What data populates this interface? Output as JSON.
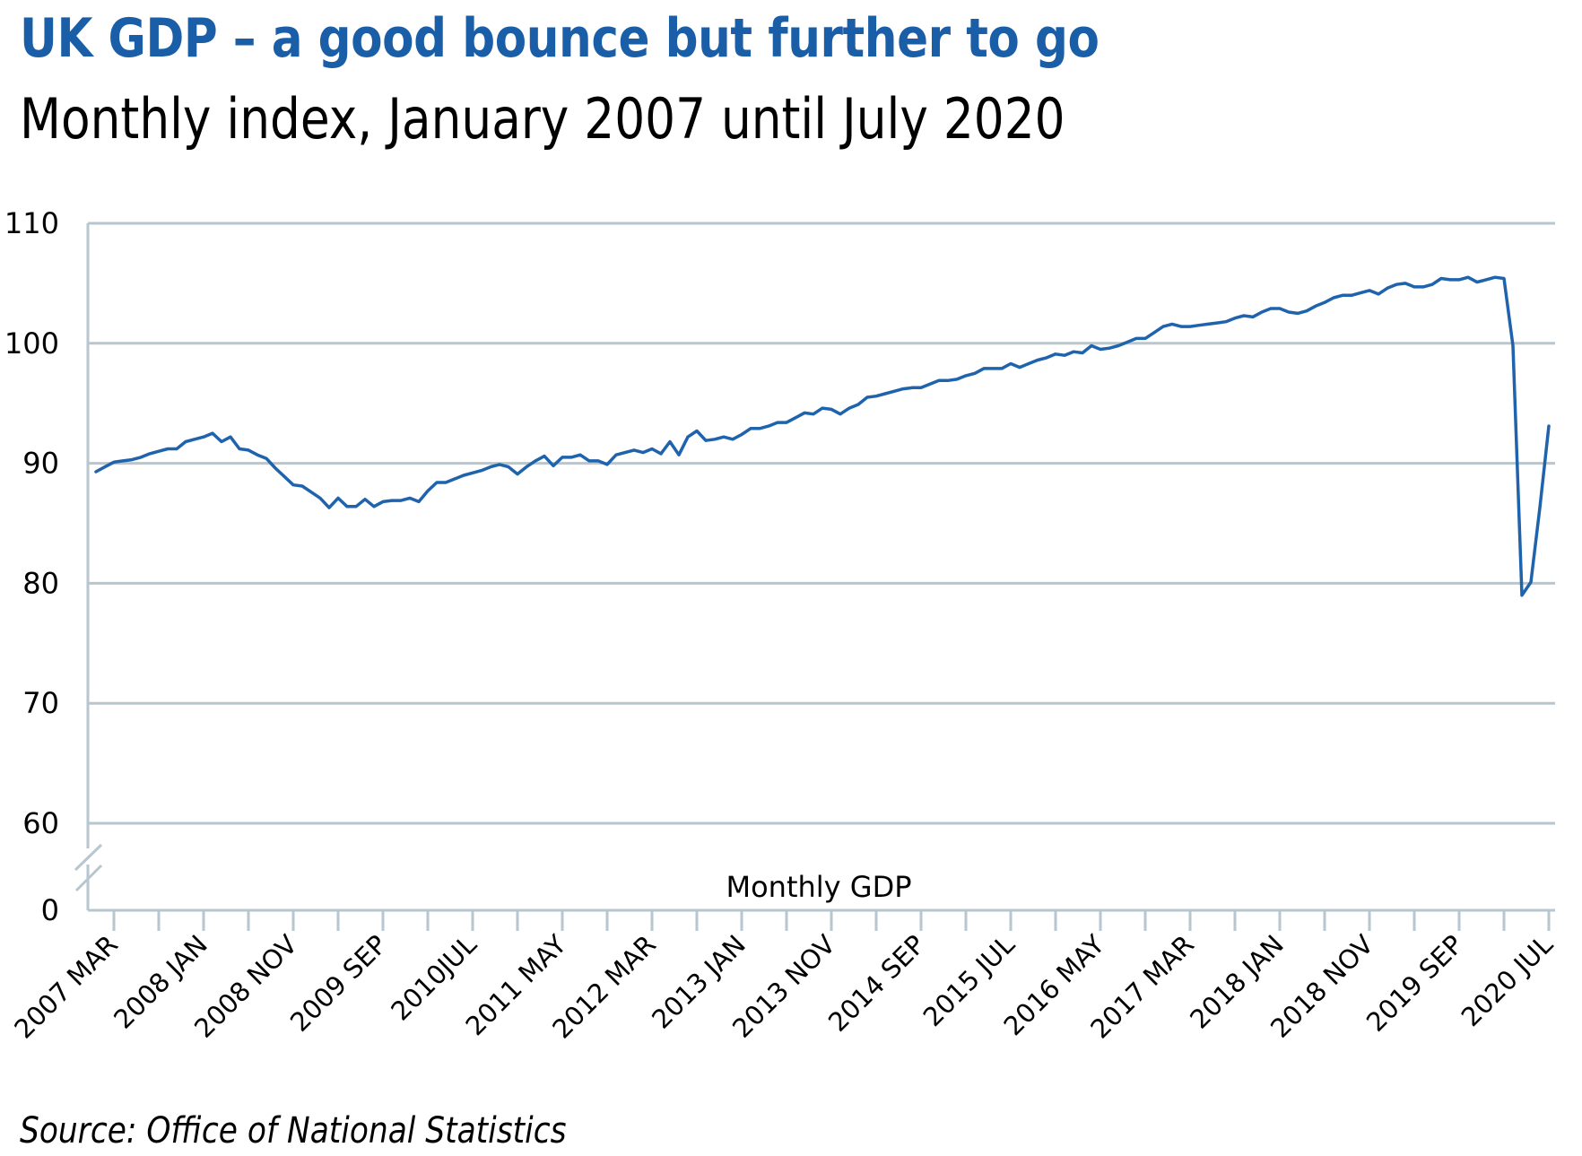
{
  "title": "UK GDP – a good bounce but further to go",
  "subtitle": "Monthly index, January 2007 until July 2020",
  "source": "Source: Office of National Statistics",
  "colors": {
    "title": "#1a5ea8",
    "series": "#1f63ad",
    "grid": "#b7c6cf"
  },
  "chart_data": {
    "type": "line",
    "title": "UK GDP – a good bounce but further to go",
    "subtitle": "Monthly index, January 2007 until July 2020",
    "xlabel": "",
    "ylabel": "",
    "x_start": "2007 JAN",
    "x_end": "2020 JUL",
    "x_frequency": "monthly",
    "ylim": [
      60,
      110
    ],
    "y_axis_break": "between 0 and 60",
    "yticks": [
      "110",
      "100",
      "90",
      "80",
      "70",
      "60",
      "0"
    ],
    "ytick_values": [
      110,
      100,
      90,
      80,
      70,
      60,
      0
    ],
    "xtick_labels": [
      "2007 MAR",
      "2008 JAN",
      "2008 NOV",
      "2009 SEP",
      "2010JUL",
      "2011 MAY",
      "2012 MAR",
      "2013 JAN",
      "2013 NOV",
      "2014 SEP",
      "2015 JUL",
      "2016 MAY",
      "2017 MAR",
      "2018 JAN",
      "2018 NOV",
      "2019 SEP",
      "2020 JUL"
    ],
    "xtick_label_month_index": [
      2,
      12,
      22,
      32,
      42,
      52,
      62,
      72,
      82,
      92,
      102,
      112,
      122,
      132,
      142,
      152,
      162
    ],
    "minor_tick_every_months": 5,
    "grid": true,
    "legend": {
      "position": "bottom-center",
      "entries": [
        "Monthly GDP"
      ]
    },
    "series": [
      {
        "name": "Monthly GDP",
        "values": [
          89.3,
          89.7,
          90.1,
          90.2,
          90.3,
          90.5,
          90.8,
          91.0,
          91.2,
          91.2,
          91.8,
          92.0,
          92.2,
          92.5,
          91.8,
          92.2,
          91.2,
          91.1,
          90.7,
          90.4,
          89.6,
          88.9,
          88.2,
          88.1,
          87.6,
          87.1,
          86.3,
          87.1,
          86.4,
          86.4,
          87.0,
          86.4,
          86.8,
          86.9,
          86.9,
          87.1,
          86.8,
          87.7,
          88.4,
          88.4,
          88.7,
          89.0,
          89.2,
          89.4,
          89.7,
          89.9,
          89.7,
          89.1,
          89.7,
          90.2,
          90.6,
          89.8,
          90.5,
          90.5,
          90.7,
          90.2,
          90.2,
          89.9,
          90.7,
          90.9,
          91.1,
          90.9,
          91.2,
          90.8,
          91.8,
          90.7,
          92.2,
          92.7,
          91.9,
          92.0,
          92.2,
          92.0,
          92.4,
          92.9,
          92.9,
          93.1,
          93.4,
          93.4,
          93.8,
          94.2,
          94.1,
          94.6,
          94.5,
          94.1,
          94.6,
          94.9,
          95.5,
          95.6,
          95.8,
          96.0,
          96.2,
          96.3,
          96.3,
          96.6,
          96.9,
          96.9,
          97.0,
          97.3,
          97.5,
          97.9,
          97.9,
          97.9,
          98.3,
          98.0,
          98.3,
          98.6,
          98.8,
          99.1,
          99.0,
          99.3,
          99.2,
          99.8,
          99.5,
          99.6,
          99.8,
          100.1,
          100.4,
          100.4,
          100.9,
          101.4,
          101.6,
          101.4,
          101.4,
          101.5,
          101.6,
          101.7,
          101.8,
          102.1,
          102.3,
          102.2,
          102.6,
          102.9,
          102.9,
          102.6,
          102.5,
          102.7,
          103.1,
          103.4,
          103.8,
          104.0,
          104.0,
          104.2,
          104.4,
          104.1,
          104.6,
          104.9,
          105.0,
          104.7,
          104.7,
          104.9,
          105.4,
          105.3,
          105.3,
          105.5,
          105.1,
          105.3,
          105.5,
          105.4,
          99.8,
          79.0,
          80.1,
          86.3,
          93.1
        ]
      }
    ]
  }
}
